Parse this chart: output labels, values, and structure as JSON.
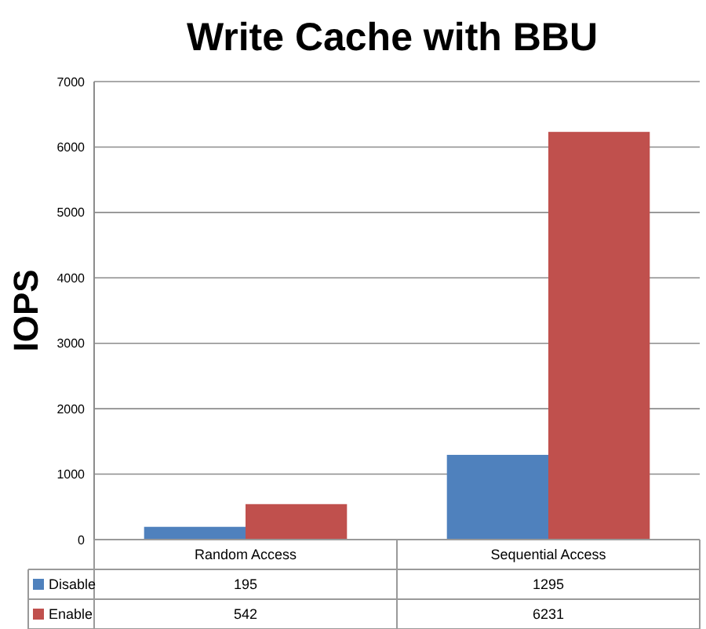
{
  "chart_data": {
    "type": "bar",
    "title": "Write Cache with BBU",
    "ylabel": "IOPS",
    "categories": [
      "Random Access",
      "Sequential Access"
    ],
    "series": [
      {
        "name": "Disable",
        "color": "#4f81bd",
        "values": [
          195,
          1295
        ]
      },
      {
        "name": "Enable",
        "color": "#c0504d",
        "values": [
          542,
          6231
        ]
      }
    ],
    "ylim": [
      0,
      7000
    ],
    "yticks": [
      0,
      1000,
      2000,
      3000,
      4000,
      5000,
      6000,
      7000
    ],
    "grid": "y",
    "legend": "bottom",
    "data_labels": true
  }
}
